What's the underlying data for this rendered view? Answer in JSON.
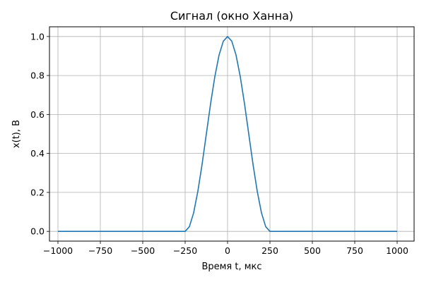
{
  "chart_data": {
    "type": "line",
    "title": "Сигнал (окно Ханна)",
    "xlabel": "Время t, мкс",
    "ylabel": "x(t), В",
    "xlim": [
      -1050,
      1100
    ],
    "ylim": [
      -0.05,
      1.05
    ],
    "xticks": [
      -1000,
      -750,
      -500,
      -250,
      0,
      250,
      500,
      750,
      1000
    ],
    "yticks": [
      0.0,
      0.2,
      0.4,
      0.6,
      0.8,
      1.0
    ],
    "xtick_labels": [
      "−1000",
      "−750",
      "−500",
      "−250",
      "0",
      "250",
      "500",
      "750",
      "1000"
    ],
    "ytick_labels": [
      "0.0",
      "0.2",
      "0.4",
      "0.6",
      "0.8",
      "1.0"
    ],
    "grid": true,
    "series": [
      {
        "color": "#1f77b4",
        "x": [
          -1000,
          -250,
          -225,
          -200,
          -175,
          -150,
          -125,
          -100,
          -75,
          -50,
          -25,
          0,
          25,
          50,
          75,
          100,
          125,
          150,
          175,
          200,
          225,
          250,
          1000
        ],
        "y": [
          0.0,
          0.0,
          0.024,
          0.095,
          0.206,
          0.345,
          0.5,
          0.655,
          0.794,
          0.905,
          0.976,
          1.0,
          0.976,
          0.905,
          0.794,
          0.655,
          0.5,
          0.345,
          0.206,
          0.095,
          0.024,
          0.0,
          0.0
        ]
      }
    ]
  }
}
